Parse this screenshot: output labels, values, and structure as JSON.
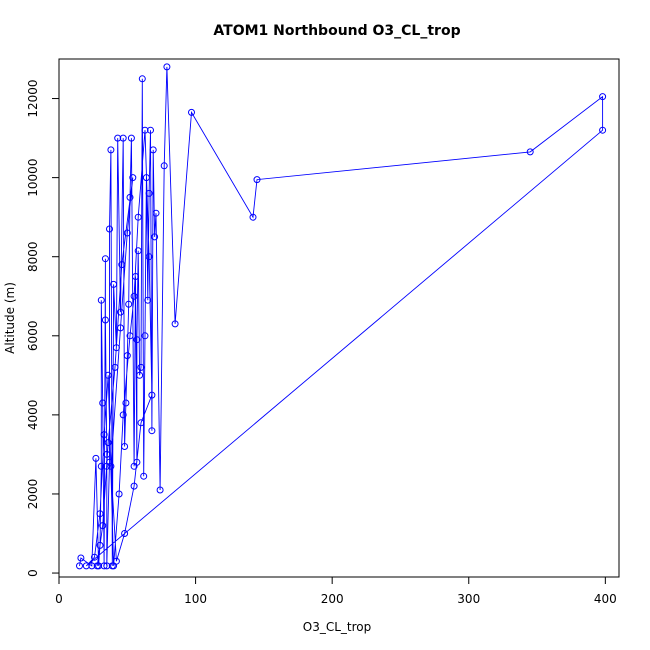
{
  "chart_data": {
    "type": "line",
    "title": "ATOM1 Northbound O3_CL_trop",
    "xlabel": "O3_CL_trop",
    "ylabel": "Altitude (m)",
    "xlim": [
      0,
      410
    ],
    "ylim": [
      -100,
      13000
    ],
    "xticks": [
      0,
      100,
      200,
      300,
      400
    ],
    "yticks": [
      0,
      2000,
      4000,
      6000,
      8000,
      10000,
      12000
    ],
    "grid": false,
    "legend": "none",
    "marker": "open-circle",
    "colors": {
      "series": "#0000ff",
      "axis": "#000000",
      "background": "#ffffff"
    },
    "series": [
      {
        "values": [
          [
            15,
            180
          ],
          [
            16,
            380
          ],
          [
            24,
            180
          ],
          [
            27,
            2900
          ],
          [
            29,
            180
          ],
          [
            30,
            700
          ],
          [
            31,
            2700
          ],
          [
            31,
            6900
          ],
          [
            32,
            4300
          ],
          [
            33,
            180
          ],
          [
            34,
            7950
          ],
          [
            34,
            6400
          ],
          [
            35,
            3000
          ],
          [
            35,
            2700
          ],
          [
            35,
            180
          ],
          [
            37,
            2800
          ],
          [
            37,
            8700
          ],
          [
            38,
            10700
          ],
          [
            39,
            180
          ],
          [
            40,
            7300
          ],
          [
            42,
            5700
          ],
          [
            43,
            11000
          ],
          [
            45,
            6600
          ],
          [
            47,
            11000
          ],
          [
            48,
            3200
          ],
          [
            49,
            4300
          ],
          [
            50,
            5500
          ],
          [
            51,
            6800
          ],
          [
            52,
            9500
          ],
          [
            53,
            11000
          ],
          [
            55,
            2700
          ],
          [
            56,
            7500
          ],
          [
            57,
            2800
          ],
          [
            57,
            5900
          ],
          [
            58,
            8150
          ],
          [
            59,
            5000
          ],
          [
            60,
            5200
          ],
          [
            61,
            12500
          ],
          [
            62,
            2450
          ],
          [
            63,
            6000
          ],
          [
            64,
            10000
          ],
          [
            65,
            6900
          ],
          [
            66,
            9600
          ],
          [
            67,
            11200
          ],
          [
            68,
            3600
          ],
          [
            69,
            10700
          ],
          [
            70,
            8500
          ],
          [
            71,
            9100
          ],
          [
            74,
            2100
          ],
          [
            77,
            10300
          ],
          [
            79,
            12800
          ],
          [
            85,
            6300
          ],
          [
            97,
            11650
          ],
          [
            142,
            9000
          ],
          [
            145,
            9950
          ],
          [
            345,
            10650
          ],
          [
            398,
            12050
          ],
          [
            398,
            11200
          ],
          [
            20,
            180
          ],
          [
            26,
            400
          ],
          [
            30,
            1500
          ],
          [
            33,
            3500
          ],
          [
            36,
            5000
          ],
          [
            40,
            180
          ],
          [
            44,
            2000
          ],
          [
            47,
            4000
          ],
          [
            52,
            6000
          ],
          [
            55,
            7000
          ],
          [
            58,
            9000
          ],
          [
            63,
            11200
          ],
          [
            66,
            8000
          ],
          [
            68,
            4500
          ],
          [
            60,
            3800
          ],
          [
            55,
            2200
          ],
          [
            48,
            1000
          ],
          [
            42,
            300
          ],
          [
            38,
            2700
          ],
          [
            45,
            6200
          ],
          [
            50,
            8600
          ],
          [
            54,
            10000
          ],
          [
            46,
            7800
          ],
          [
            41,
            5200
          ],
          [
            36,
            3300
          ],
          [
            32,
            1200
          ],
          [
            28,
            180
          ]
        ]
      }
    ]
  }
}
